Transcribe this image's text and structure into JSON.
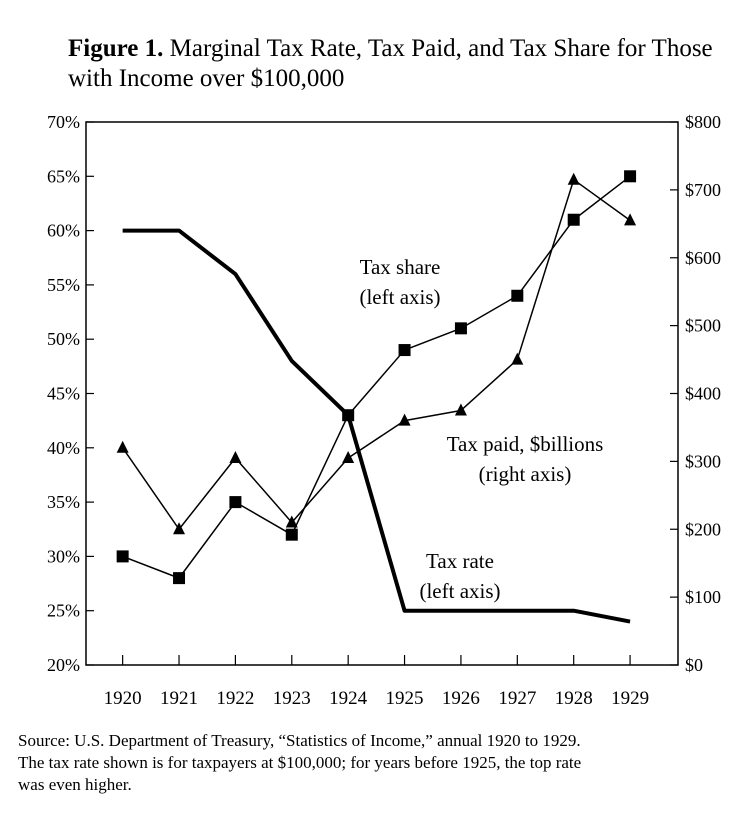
{
  "title": {
    "label": "Figure 1.",
    "text": "Marginal Tax Rate, Tax Paid, and Tax Share for Those with Income over $100,000"
  },
  "chart_data": {
    "type": "line",
    "categories": [
      "1920",
      "1921",
      "1922",
      "1923",
      "1924",
      "1925",
      "1926",
      "1927",
      "1928",
      "1929"
    ],
    "left_axis": {
      "range": [
        20,
        70
      ],
      "ticks": [
        20,
        25,
        30,
        35,
        40,
        45,
        50,
        55,
        60,
        65,
        70
      ],
      "tick_labels": [
        "20%",
        "25%",
        "30%",
        "35%",
        "40%",
        "45%",
        "50%",
        "55%",
        "60%",
        "65%",
        "70%"
      ]
    },
    "right_axis": {
      "range": [
        0,
        800
      ],
      "ticks": [
        0,
        100,
        200,
        300,
        400,
        500,
        600,
        700,
        800
      ],
      "tick_labels": [
        "$0",
        "$100",
        "$200",
        "$300",
        "$400",
        "$500",
        "$600",
        "$700",
        "$800"
      ]
    },
    "series": [
      {
        "name": "Tax rate",
        "axis": "left",
        "values": [
          60,
          60,
          56,
          48,
          43,
          25,
          25,
          25,
          25,
          24
        ],
        "annotation": [
          "Tax rate",
          "(left axis)"
        ]
      },
      {
        "name": "Tax share",
        "axis": "left",
        "values": [
          30,
          28,
          35,
          32,
          43,
          49,
          51,
          54,
          61,
          65
        ],
        "annotation": [
          "Tax share",
          "(left axis)"
        ]
      },
      {
        "name": "Tax paid, $billions",
        "axis": "right",
        "values": [
          320,
          200,
          305,
          210,
          305,
          360,
          375,
          450,
          715,
          655
        ],
        "annotation": [
          "Tax paid, $billions",
          "(right axis)"
        ]
      }
    ]
  },
  "source": {
    "line1": "Source: U.S. Department of Treasury, “Statistics of Income,” annual 1920 to 1929.",
    "line2": "The tax rate shown is for taxpayers at $100,000; for years before 1925, the top rate",
    "line3": "was even higher."
  }
}
